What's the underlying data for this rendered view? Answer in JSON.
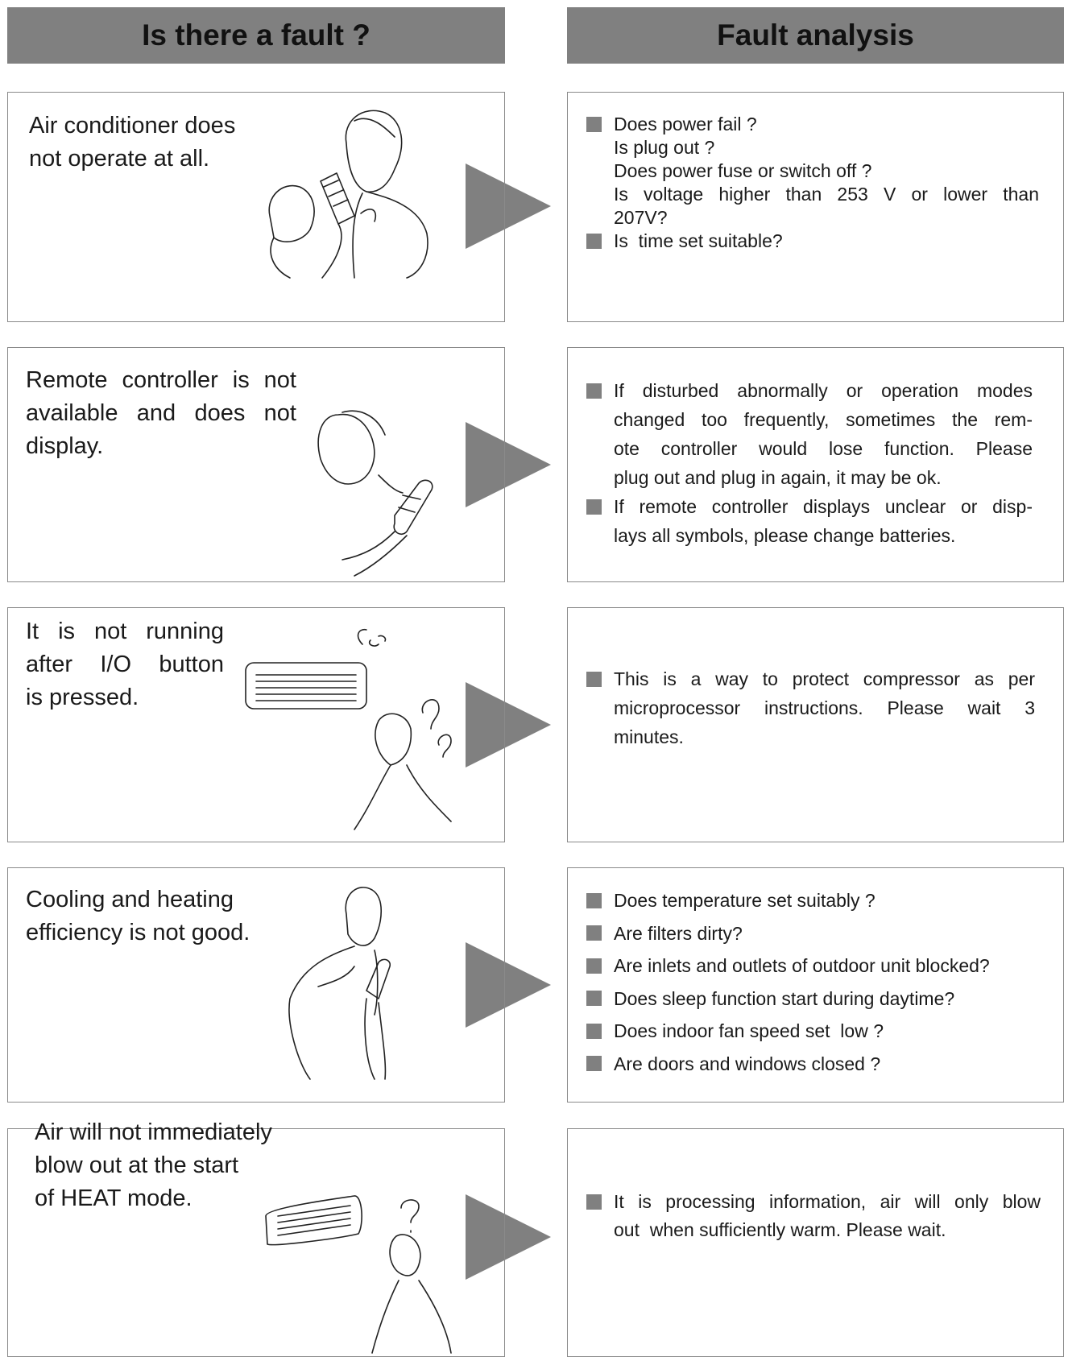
{
  "header": {
    "left": "Is there a fault ?",
    "right": "Fault analysis"
  },
  "rows": [
    {
      "problem": [
        "Air conditioner does",
        "not operate at all."
      ],
      "analysis": [
        [
          "Does power fail ?",
          "Is plug out ?",
          "Does power fuse or switch off ?",
          "Is voltage higher  than 253 V  or  lower  than",
          "207V?"
        ],
        [
          "Is  time set suitable?"
        ]
      ]
    },
    {
      "problem": [
        "Remote controller is not",
        "available and  does  not",
        "display."
      ],
      "analysis": [
        [
          "If  disturbed  abnormally  or operation modes",
          "changed  too frequently, sometimes the  rem-",
          "ote  controller  would  lose function.  Please",
          "plug out and plug in again, it may be ok."
        ],
        [
          "If  remote controller displays unclear or disp-",
          "lays all symbols, please change batteries."
        ]
      ]
    },
    {
      "problem": [
        "It  is  not  running",
        "after  I/O  button",
        "is pressed."
      ],
      "analysis": [
        [
          "This  is  a way to protect  compressor as  per",
          "microprocessor  instructions.  Please  wait  3",
          "minutes."
        ]
      ]
    },
    {
      "problem": [
        "Cooling and heating",
        "efficiency is not good."
      ],
      "analysis": [
        [
          "Does temperature set suitably ?"
        ],
        [
          "Are filters dirty?"
        ],
        [
          "Are inlets and outlets of outdoor unit blocked?"
        ],
        [
          "Does sleep function start during daytime?"
        ],
        [
          "Does indoor fan speed set  low ?"
        ],
        [
          "Are doors and windows closed ?"
        ]
      ]
    },
    {
      "problem": [
        "Air will not immediately",
        "blow out at the start",
        "of HEAT mode."
      ],
      "analysis": [
        [
          "It is processing information, air will only  blow",
          "out  when sufficiently warm. Please wait."
        ]
      ]
    }
  ]
}
